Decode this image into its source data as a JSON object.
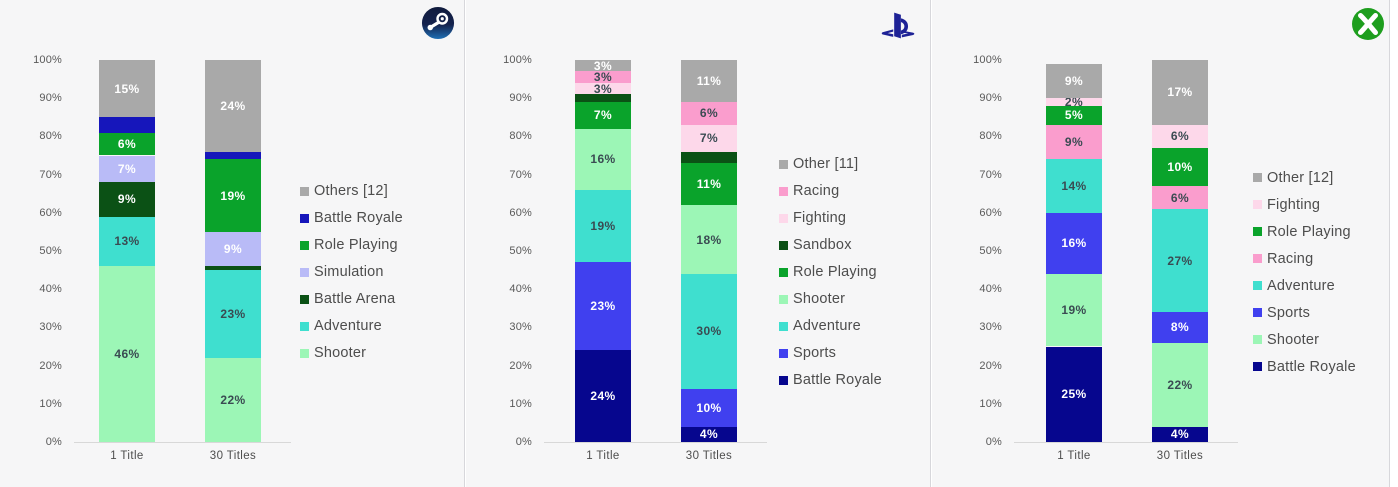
{
  "colors": {
    "background": "#f6f6f7",
    "panel_border": "#d7d7db",
    "axis_text": "#595959",
    "category_text": "#4d4d4d",
    "legend_text": "#4d4d4d",
    "baseline": "#d8d8d8",
    "label_dark": "#3a4b52",
    "label_light": "#ffffff",
    "genres": {
      "others": "#a9a9a9",
      "battle_royale_steam": "#1616bb",
      "battle_royale": "#06068e",
      "role_playing": "#0aa32b",
      "simulation": "#b9bbf7",
      "battle_arena": "#0b5115",
      "sandbox": "#0b5115",
      "adventure": "#3fdfcf",
      "shooter": "#9cf6b6",
      "racing": "#fa9dcd",
      "fighting": "#fdd8ea",
      "sports": "#4040ef"
    },
    "steam_logo_top": "#101b3c",
    "steam_logo_bottom": "#1f6fb4",
    "playstation_logo": "#1e2296",
    "xbox_logo_green": "#1e9e1e"
  },
  "chart_data": [
    {
      "type": "bar",
      "stacked": true,
      "platform": "Steam",
      "panel_name": "steam",
      "logo_icon": "steam-logo-icon",
      "categories": [
        "1 Title",
        "30 Titles"
      ],
      "ylim": [
        0,
        100
      ],
      "y_ticks": [
        "100%",
        "90%",
        "80%",
        "70%",
        "60%",
        "50%",
        "40%",
        "30%",
        "20%",
        "10%",
        "0%"
      ],
      "legend_position": "right",
      "grid": false,
      "legend": [
        {
          "label": "Others [12]",
          "color_key": "others"
        },
        {
          "label": "Battle Royale",
          "color_key": "battle_royale_steam"
        },
        {
          "label": "Role Playing",
          "color_key": "role_playing"
        },
        {
          "label": "Simulation",
          "color_key": "simulation"
        },
        {
          "label": "Battle Arena",
          "color_key": "battle_arena"
        },
        {
          "label": "Adventure",
          "color_key": "adventure"
        },
        {
          "label": "Shooter",
          "color_key": "shooter"
        }
      ],
      "bars": [
        {
          "category": "1 Title",
          "segments": [
            {
              "genre": "Shooter",
              "value": 46,
              "label": "46%",
              "color_key": "shooter",
              "text": "dark"
            },
            {
              "genre": "Adventure",
              "value": 13,
              "label": "13%",
              "color_key": "adventure",
              "text": "dark"
            },
            {
              "genre": "Battle Arena",
              "value": 9,
              "label": "9%",
              "color_key": "battle_arena",
              "text": "light"
            },
            {
              "genre": "Simulation",
              "value": 7,
              "label": "7%",
              "color_key": "simulation",
              "text": "light"
            },
            {
              "genre": "Role Playing",
              "value": 6,
              "label": "6%",
              "color_key": "role_playing",
              "text": "light"
            },
            {
              "genre": "Battle Royale",
              "value": 4,
              "label": "",
              "color_key": "battle_royale_steam",
              "text": "light"
            },
            {
              "genre": "Others",
              "value": 15,
              "label": "15%",
              "color_key": "others",
              "text": "light"
            }
          ]
        },
        {
          "category": "30 Titles",
          "segments": [
            {
              "genre": "Shooter",
              "value": 22,
              "label": "22%",
              "color_key": "shooter",
              "text": "dark"
            },
            {
              "genre": "Adventure",
              "value": 23,
              "label": "23%",
              "color_key": "adventure",
              "text": "dark"
            },
            {
              "genre": "Battle Arena",
              "value": 1,
              "label": "",
              "color_key": "battle_arena",
              "text": "light"
            },
            {
              "genre": "Simulation",
              "value": 9,
              "label": "9%",
              "color_key": "simulation",
              "text": "light"
            },
            {
              "genre": "Role Playing",
              "value": 19,
              "label": "19%",
              "color_key": "role_playing",
              "text": "light"
            },
            {
              "genre": "Battle Royale",
              "value": 2,
              "label": "",
              "color_key": "battle_royale_steam",
              "text": "light"
            },
            {
              "genre": "Others",
              "value": 24,
              "label": "24%",
              "color_key": "others",
              "text": "light"
            }
          ]
        }
      ]
    },
    {
      "type": "bar",
      "stacked": true,
      "platform": "PlayStation",
      "panel_name": "playstation",
      "logo_icon": "playstation-logo-icon",
      "categories": [
        "1 Title",
        "30 Titles"
      ],
      "ylim": [
        0,
        100
      ],
      "y_ticks": [
        "100%",
        "90%",
        "80%",
        "70%",
        "60%",
        "50%",
        "40%",
        "30%",
        "20%",
        "10%",
        "0%"
      ],
      "legend_position": "right",
      "grid": false,
      "legend": [
        {
          "label": "Other [11]",
          "color_key": "others"
        },
        {
          "label": "Racing",
          "color_key": "racing"
        },
        {
          "label": "Fighting",
          "color_key": "fighting"
        },
        {
          "label": "Sandbox",
          "color_key": "sandbox"
        },
        {
          "label": "Role Playing",
          "color_key": "role_playing"
        },
        {
          "label": "Shooter",
          "color_key": "shooter"
        },
        {
          "label": "Adventure",
          "color_key": "adventure"
        },
        {
          "label": "Sports",
          "color_key": "sports"
        },
        {
          "label": "Battle Royale",
          "color_key": "battle_royale"
        }
      ],
      "bars": [
        {
          "category": "1 Title",
          "segments": [
            {
              "genre": "Battle Royale",
              "value": 24,
              "label": "24%",
              "color_key": "battle_royale",
              "text": "light"
            },
            {
              "genre": "Sports",
              "value": 23,
              "label": "23%",
              "color_key": "sports",
              "text": "light"
            },
            {
              "genre": "Adventure",
              "value": 19,
              "label": "19%",
              "color_key": "adventure",
              "text": "dark"
            },
            {
              "genre": "Shooter",
              "value": 16,
              "label": "16%",
              "color_key": "shooter",
              "text": "dark"
            },
            {
              "genre": "Role Playing",
              "value": 7,
              "label": "7%",
              "color_key": "role_playing",
              "text": "light"
            },
            {
              "genre": "Sandbox",
              "value": 2,
              "label": "",
              "color_key": "sandbox",
              "text": "light"
            },
            {
              "genre": "Fighting",
              "value": 3,
              "label": "3%",
              "color_key": "fighting",
              "text": "dark"
            },
            {
              "genre": "Racing",
              "value": 3,
              "label": "3%",
              "color_key": "racing",
              "text": "dark"
            },
            {
              "genre": "Other",
              "value": 3,
              "label": "3%",
              "color_key": "others",
              "text": "light"
            }
          ]
        },
        {
          "category": "30 Titles",
          "segments": [
            {
              "genre": "Battle Royale",
              "value": 4,
              "label": "4%",
              "color_key": "battle_royale",
              "text": "light"
            },
            {
              "genre": "Sports",
              "value": 10,
              "label": "10%",
              "color_key": "sports",
              "text": "light"
            },
            {
              "genre": "Adventure",
              "value": 30,
              "label": "30%",
              "color_key": "adventure",
              "text": "dark"
            },
            {
              "genre": "Shooter",
              "value": 18,
              "label": "18%",
              "color_key": "shooter",
              "text": "dark"
            },
            {
              "genre": "Role Playing",
              "value": 11,
              "label": "11%",
              "color_key": "role_playing",
              "text": "light"
            },
            {
              "genre": "Sandbox",
              "value": 3,
              "label": "",
              "color_key": "sandbox",
              "text": "light"
            },
            {
              "genre": "Fighting",
              "value": 7,
              "label": "7%",
              "color_key": "fighting",
              "text": "dark"
            },
            {
              "genre": "Racing",
              "value": 6,
              "label": "6%",
              "color_key": "racing",
              "text": "dark"
            },
            {
              "genre": "Other",
              "value": 11,
              "label": "11%",
              "color_key": "others",
              "text": "light"
            }
          ]
        }
      ]
    },
    {
      "type": "bar",
      "stacked": true,
      "platform": "Xbox",
      "panel_name": "xbox",
      "logo_icon": "xbox-logo-icon",
      "categories": [
        "1 Title",
        "30 Titles"
      ],
      "ylim": [
        0,
        100
      ],
      "y_ticks": [
        "100%",
        "90%",
        "80%",
        "70%",
        "60%",
        "50%",
        "40%",
        "30%",
        "20%",
        "10%",
        "0%"
      ],
      "legend_position": "right",
      "grid": false,
      "legend": [
        {
          "label": "Other [12]",
          "color_key": "others"
        },
        {
          "label": "Fighting",
          "color_key": "fighting"
        },
        {
          "label": "Role Playing",
          "color_key": "role_playing"
        },
        {
          "label": "Racing",
          "color_key": "racing"
        },
        {
          "label": "Adventure",
          "color_key": "adventure"
        },
        {
          "label": "Sports",
          "color_key": "sports"
        },
        {
          "label": "Shooter",
          "color_key": "shooter"
        },
        {
          "label": "Battle Royale",
          "color_key": "battle_royale"
        }
      ],
      "bars": [
        {
          "category": "1 Title",
          "segments": [
            {
              "genre": "Battle Royale",
              "value": 25,
              "label": "25%",
              "color_key": "battle_royale",
              "text": "light"
            },
            {
              "genre": "Shooter",
              "value": 19,
              "label": "19%",
              "color_key": "shooter",
              "text": "dark"
            },
            {
              "genre": "Sports",
              "value": 16,
              "label": "16%",
              "color_key": "sports",
              "text": "light"
            },
            {
              "genre": "Adventure",
              "value": 14,
              "label": "14%",
              "color_key": "adventure",
              "text": "dark"
            },
            {
              "genre": "Racing",
              "value": 9,
              "label": "9%",
              "color_key": "racing",
              "text": "dark"
            },
            {
              "genre": "Role Playing",
              "value": 5,
              "label": "5%",
              "color_key": "role_playing",
              "text": "light"
            },
            {
              "genre": "Fighting",
              "value": 2,
              "label": "2%",
              "color_key": "fighting",
              "text": "dark"
            },
            {
              "genre": "Other",
              "value": 9,
              "label": "9%",
              "color_key": "others",
              "text": "light"
            }
          ]
        },
        {
          "category": "30 Titles",
          "segments": [
            {
              "genre": "Battle Royale",
              "value": 4,
              "label": "4%",
              "color_key": "battle_royale",
              "text": "light"
            },
            {
              "genre": "Shooter",
              "value": 22,
              "label": "22%",
              "color_key": "shooter",
              "text": "dark"
            },
            {
              "genre": "Sports",
              "value": 8,
              "label": "8%",
              "color_key": "sports",
              "text": "light"
            },
            {
              "genre": "Adventure",
              "value": 27,
              "label": "27%",
              "color_key": "adventure",
              "text": "dark"
            },
            {
              "genre": "Racing",
              "value": 6,
              "label": "6%",
              "color_key": "racing",
              "text": "dark"
            },
            {
              "genre": "Role Playing",
              "value": 10,
              "label": "10%",
              "color_key": "role_playing",
              "text": "light"
            },
            {
              "genre": "Fighting",
              "value": 6,
              "label": "6%",
              "color_key": "fighting",
              "text": "dark"
            },
            {
              "genre": "Other",
              "value": 17,
              "label": "17%",
              "color_key": "others",
              "text": "light"
            }
          ]
        }
      ]
    }
  ]
}
